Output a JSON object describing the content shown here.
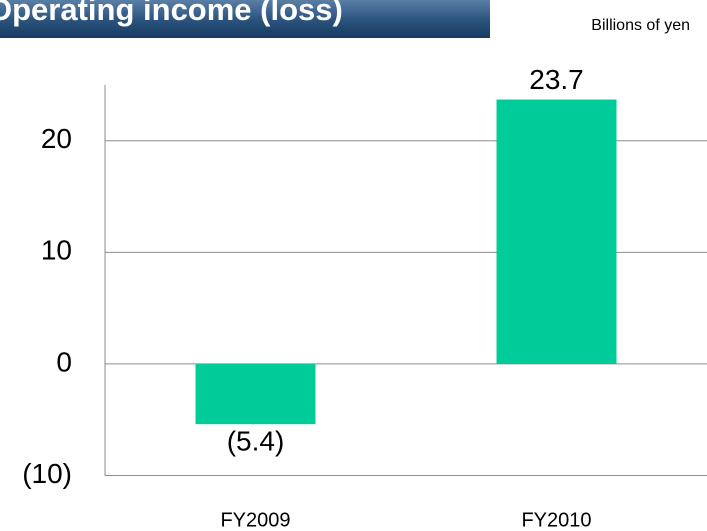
{
  "chart_data": {
    "type": "bar",
    "title": "Operating income (loss)",
    "subtitle": "Billions of yen",
    "categories": [
      "FY2009",
      "FY2010"
    ],
    "values": [
      -5.4,
      23.7
    ],
    "value_labels": [
      "(5.4)",
      "23.7"
    ],
    "color": "#00cc99",
    "ylim": [
      -10,
      25
    ],
    "yticks": [
      {
        "value": -10,
        "label": "(10)"
      },
      0,
      10,
      20
    ],
    "grid": true
  }
}
